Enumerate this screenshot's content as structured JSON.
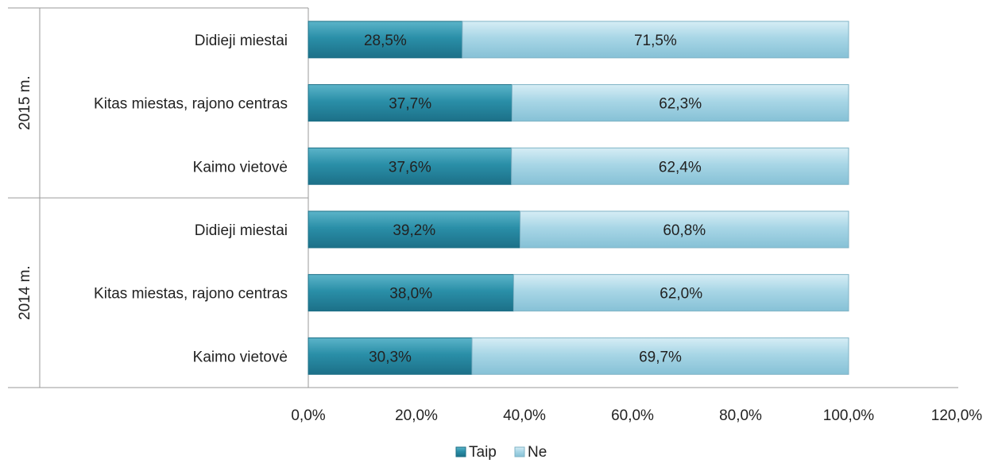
{
  "chart_data": {
    "type": "bar",
    "orientation": "horizontal",
    "stacked": true,
    "groups": [
      {
        "label": "2015 m.",
        "rows": [
          {
            "category": "Didieji miestai",
            "taip": 28.5,
            "ne": 71.5,
            "taip_label": "28,5%",
            "ne_label": "71,5%"
          },
          {
            "category": "Kitas miestas, rajono centras",
            "taip": 37.7,
            "ne": 62.3,
            "taip_label": "37,7%",
            "ne_label": "62,3%"
          },
          {
            "category": "Kaimo vietovė",
            "taip": 37.6,
            "ne": 62.4,
            "taip_label": "37,6%",
            "ne_label": "62,4%"
          }
        ]
      },
      {
        "label": "2014 m.",
        "rows": [
          {
            "category": "Didieji miestai",
            "taip": 39.2,
            "ne": 60.8,
            "taip_label": "39,2%",
            "ne_label": "60,8%"
          },
          {
            "category": "Kitas miestas, rajono centras",
            "taip": 38.0,
            "ne": 62.0,
            "taip_label": "38,0%",
            "ne_label": "62,0%"
          },
          {
            "category": "Kaimo vietovė",
            "taip": 30.3,
            "ne": 69.7,
            "taip_label": "30,3%",
            "ne_label": "69,7%"
          }
        ]
      }
    ],
    "series": [
      {
        "name": "Taip",
        "color": "#2a8fa8"
      },
      {
        "name": "Ne",
        "color": "#9fd2e3"
      }
    ],
    "xlim": [
      0,
      120
    ],
    "x_ticks": [
      "0,0%",
      "20,0%",
      "40,0%",
      "60,0%",
      "80,0%",
      "100,0%",
      "120,0%"
    ],
    "grid": false,
    "legend_position": "bottom"
  }
}
